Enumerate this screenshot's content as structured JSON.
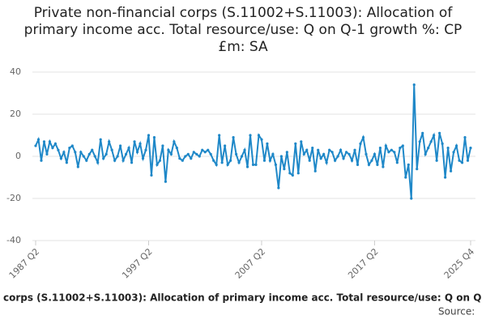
{
  "chart_data": {
    "type": "line",
    "title": "Private non-financial corps (S.11002+S.11003): Allocation of primary income acc. Total resource/use: Q on Q-1 growth %: CP £m: SA",
    "categories": [
      "1987 Q2",
      null,
      null,
      null,
      null,
      null,
      null,
      null,
      null,
      null,
      null,
      null,
      null,
      null,
      null,
      null,
      null,
      null,
      null,
      null,
      null,
      null,
      null,
      null,
      null,
      null,
      null,
      null,
      null,
      null,
      null,
      null,
      null,
      null,
      null,
      null,
      null,
      null,
      null,
      null,
      "1997 Q2",
      null,
      null,
      null,
      null,
      null,
      null,
      null,
      null,
      null,
      null,
      null,
      null,
      null,
      null,
      null,
      null,
      null,
      null,
      null,
      null,
      null,
      null,
      null,
      null,
      null,
      null,
      null,
      null,
      null,
      null,
      null,
      null,
      null,
      null,
      null,
      null,
      null,
      null,
      null,
      "2007 Q2",
      null,
      null,
      null,
      null,
      null,
      null,
      null,
      null,
      null,
      null,
      null,
      null,
      null,
      null,
      null,
      null,
      null,
      null,
      null,
      null,
      null,
      null,
      null,
      null,
      null,
      null,
      null,
      null,
      null,
      null,
      null,
      null,
      null,
      null,
      null,
      null,
      null,
      null,
      null,
      "2017 Q2",
      null,
      null,
      null,
      null,
      null,
      null,
      null,
      null,
      null,
      null,
      null,
      null,
      null,
      null,
      null,
      null,
      null,
      null,
      null,
      null,
      null,
      null,
      null,
      null,
      null,
      null,
      null,
      null,
      null,
      null,
      null,
      null,
      null,
      "2025 Q4"
    ],
    "series": [
      {
        "color": "#1f88c8",
        "values": [
          5,
          8,
          -2,
          7,
          1,
          7,
          4,
          6,
          3,
          -1,
          2,
          -3,
          4,
          5,
          2,
          -5,
          2,
          0,
          -2,
          1,
          3,
          0,
          -3,
          8,
          -1,
          1,
          7,
          3,
          -2,
          0,
          5,
          -2,
          1,
          4,
          -3,
          7,
          2,
          6,
          -1,
          3,
          10,
          -9,
          9,
          -4,
          -2,
          5,
          -12,
          3,
          1,
          7,
          4,
          -1,
          -2,
          0,
          1,
          -1,
          2,
          1,
          0,
          3,
          2,
          3,
          1,
          -2,
          -4,
          10,
          -3,
          5,
          -4,
          -2,
          9,
          1,
          -3,
          0,
          3,
          -5,
          10,
          -4,
          -4,
          10,
          8,
          -2,
          6,
          -2,
          1,
          -4,
          -15,
          0,
          -6,
          2,
          -8,
          -9,
          6,
          -8,
          7,
          1,
          3,
          -2,
          4,
          -7,
          3,
          -1,
          1,
          -3,
          3,
          2,
          -2,
          0,
          3,
          -1,
          2,
          1,
          -2,
          3,
          -4,
          6,
          9,
          1,
          -4,
          -2,
          1,
          -4,
          4,
          -5,
          5,
          2,
          3,
          2,
          -3,
          4,
          5,
          -10,
          -4,
          -20,
          34,
          -6,
          7,
          11,
          1,
          4,
          7,
          10,
          -2,
          11,
          6,
          -10,
          4,
          -7,
          2,
          5,
          -2,
          -3,
          9,
          -2,
          4
        ]
      }
    ],
    "ylim": [
      -40,
      40
    ],
    "yticks": [
      -40,
      -20,
      0,
      20,
      40
    ],
    "grid": true
  },
  "footer": {
    "title": "corps (S.11002+S.11003): Allocation of primary income acc. Total resource/use: Q on Q",
    "source": "Source:"
  }
}
